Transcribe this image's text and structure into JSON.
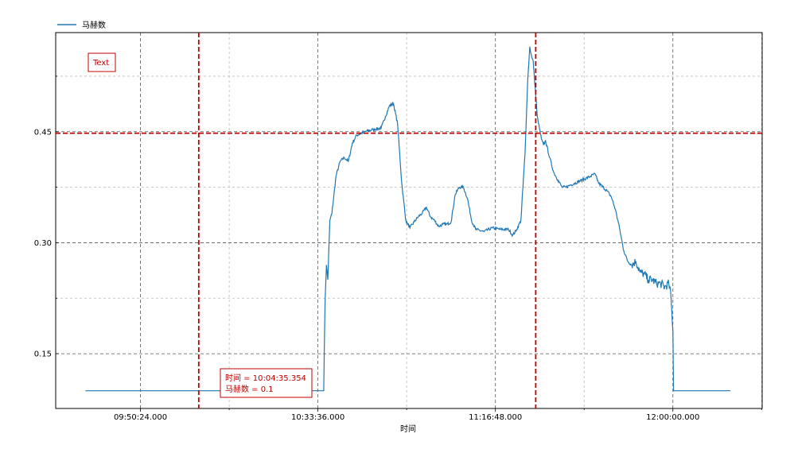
{
  "chart_data": {
    "type": "line",
    "title": "",
    "xlabel": "时间",
    "ylabel": "",
    "legend": {
      "placement": "top-left",
      "entries": [
        "马赫数"
      ]
    },
    "grid": true,
    "x_ticks": [
      "09:50:24.000",
      "10:33:36.000",
      "11:16:48.000",
      "12:00:00.000"
    ],
    "y_ticks": [
      "0.15",
      "0.30",
      "0.45"
    ],
    "xlim": [
      "09:29:46",
      "12:21:44"
    ],
    "ylim": [
      0.076,
      0.584
    ],
    "colors": {
      "series": "#1f77b4",
      "cursor": "#c00000",
      "grid_major": "#555555",
      "grid_minor": "#bbbbbb"
    },
    "cursor": {
      "x": "10:04:35.354",
      "y": 0.448
    },
    "annotations": {
      "text_box": "Text",
      "cursor_line1": "时间 = 10:04:35.354",
      "cursor_line2": "马赫数 = 0.1"
    },
    "series": [
      {
        "name": "马赫数",
        "points": [
          [
            "09:37:00",
            0.1
          ],
          [
            "10:35:00",
            0.1
          ],
          [
            "10:35:20",
            0.22
          ],
          [
            "10:35:40",
            0.27
          ],
          [
            "10:36:00",
            0.25
          ],
          [
            "10:36:30",
            0.33
          ],
          [
            "10:37:00",
            0.34
          ],
          [
            "10:38:00",
            0.39
          ],
          [
            "10:39:00",
            0.41
          ],
          [
            "10:40:00",
            0.415
          ],
          [
            "10:41:00",
            0.41
          ],
          [
            "10:42:00",
            0.435
          ],
          [
            "10:43:00",
            0.445
          ],
          [
            "10:45:00",
            0.45
          ],
          [
            "10:47:00",
            0.453
          ],
          [
            "10:49:00",
            0.455
          ],
          [
            "10:50:00",
            0.47
          ],
          [
            "10:51:00",
            0.485
          ],
          [
            "10:52:00",
            0.488
          ],
          [
            "10:53:00",
            0.46
          ],
          [
            "10:54:00",
            0.38
          ],
          [
            "10:55:00",
            0.33
          ],
          [
            "10:56:00",
            0.32
          ],
          [
            "10:57:00",
            0.328
          ],
          [
            "10:58:00",
            0.335
          ],
          [
            "10:59:00",
            0.34
          ],
          [
            "11:00:00",
            0.348
          ],
          [
            "11:01:00",
            0.335
          ],
          [
            "11:02:00",
            0.33
          ],
          [
            "11:03:00",
            0.322
          ],
          [
            "11:04:00",
            0.325
          ],
          [
            "11:05:00",
            0.325
          ],
          [
            "11:06:00",
            0.328
          ],
          [
            "11:07:00",
            0.365
          ],
          [
            "11:08:00",
            0.375
          ],
          [
            "11:09:00",
            0.375
          ],
          [
            "11:10:00",
            0.36
          ],
          [
            "11:11:00",
            0.33
          ],
          [
            "11:12:00",
            0.318
          ],
          [
            "11:14:00",
            0.315
          ],
          [
            "11:16:00",
            0.32
          ],
          [
            "11:18:00",
            0.318
          ],
          [
            "11:20:00",
            0.318
          ],
          [
            "11:21:00",
            0.31
          ],
          [
            "11:22:00",
            0.318
          ],
          [
            "11:23:00",
            0.33
          ],
          [
            "11:24:00",
            0.42
          ],
          [
            "11:24:40",
            0.52
          ],
          [
            "11:25:10",
            0.565
          ],
          [
            "11:25:40",
            0.55
          ],
          [
            "11:26:00",
            0.545
          ],
          [
            "11:27:00",
            0.47
          ],
          [
            "11:28:00",
            0.44
          ],
          [
            "11:28:30",
            0.432
          ],
          [
            "11:29:00",
            0.438
          ],
          [
            "11:30:00",
            0.415
          ],
          [
            "11:31:00",
            0.395
          ],
          [
            "11:32:00",
            0.385
          ],
          [
            "11:33:00",
            0.375
          ],
          [
            "11:34:00",
            0.375
          ],
          [
            "11:35:00",
            0.378
          ],
          [
            "11:36:00",
            0.38
          ],
          [
            "11:38:00",
            0.385
          ],
          [
            "11:40:00",
            0.39
          ],
          [
            "11:41:00",
            0.393
          ],
          [
            "11:42:00",
            0.38
          ],
          [
            "11:43:00",
            0.375
          ],
          [
            "11:44:00",
            0.37
          ],
          [
            "11:45:00",
            0.362
          ],
          [
            "11:46:00",
            0.345
          ],
          [
            "11:47:00",
            0.32
          ],
          [
            "11:48:00",
            0.29
          ],
          [
            "11:49:00",
            0.275
          ],
          [
            "11:50:00",
            0.27
          ],
          [
            "11:51:00",
            0.275
          ],
          [
            "11:52:00",
            0.26
          ],
          [
            "11:53:00",
            0.258
          ],
          [
            "11:54:00",
            0.25
          ],
          [
            "11:55:00",
            0.25
          ],
          [
            "11:56:00",
            0.245
          ],
          [
            "11:57:00",
            0.245
          ],
          [
            "11:58:00",
            0.24
          ],
          [
            "11:59:00",
            0.245
          ],
          [
            "11:59:30",
            0.23
          ],
          [
            "12:00:00",
            0.18
          ],
          [
            "12:00:10",
            0.1
          ],
          [
            "12:14:00",
            0.1
          ]
        ]
      }
    ]
  }
}
